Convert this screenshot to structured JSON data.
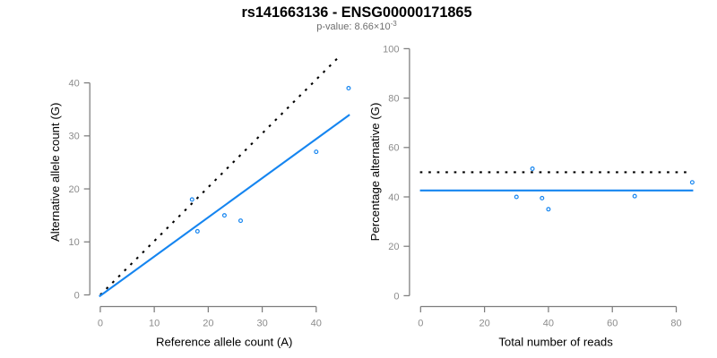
{
  "title": "rs141663136 - ENSG00000171865",
  "subtitle": {
    "label": "p-value:",
    "mantissa": "8.66",
    "times_sign": "×",
    "base": "10",
    "exponent": "-3"
  },
  "colors": {
    "background": "#ffffff",
    "title": "#000000",
    "subtitle": "#6e6e6e",
    "axis_line": "#7d7d7d",
    "tick_label": "#8c8c8c",
    "axis_title": "#000000",
    "blue": "#1585f0",
    "black": "#000000"
  },
  "chart_data": [
    {
      "name": "allele-counts",
      "type": "scatter",
      "xlabel": "Reference allele count (A)",
      "ylabel": "Alternative allele count (G)",
      "xticks": [
        0,
        10,
        20,
        30,
        40
      ],
      "yticks": [
        0,
        10,
        20,
        30,
        40
      ],
      "xlim": [
        -0.3,
        47.8
      ],
      "ylim": [
        -2.2,
        45.3
      ],
      "grid": false,
      "legend": false,
      "points": [
        [
          17,
          18
        ],
        [
          18,
          12
        ],
        [
          23,
          15
        ],
        [
          26,
          14
        ],
        [
          40,
          27
        ],
        [
          46,
          39
        ]
      ],
      "lines": [
        {
          "name": "identity-line",
          "style": "dotted",
          "color": "black",
          "x": [
            0,
            44.3
          ],
          "y": [
            0,
            45.0
          ]
        },
        {
          "name": "fit-line",
          "style": "solid",
          "color": "blue",
          "x": [
            -0.2,
            46.2
          ],
          "y": [
            -0.3,
            34.0
          ]
        }
      ]
    },
    {
      "name": "percentage-alternative",
      "type": "scatter",
      "xlabel": "Total number of reads",
      "ylabel": "Percentage alternative (G)",
      "xticks": [
        0,
        20,
        40,
        60,
        80
      ],
      "yticks": [
        0,
        20,
        40,
        60,
        80,
        100
      ],
      "xlim": [
        -3.5,
        88.5
      ],
      "ylim": [
        -4.4,
        104.4
      ],
      "grid": false,
      "legend": false,
      "points": [
        [
          30,
          40
        ],
        [
          35,
          51.4
        ],
        [
          38,
          39.5
        ],
        [
          40,
          35
        ],
        [
          67,
          40.3
        ],
        [
          85,
          45.9
        ]
      ],
      "lines": [
        {
          "name": "null-line",
          "style": "dotted",
          "color": "black",
          "x": [
            -0.2,
            83.8
          ],
          "y": [
            50,
            50
          ]
        },
        {
          "name": "fit-line",
          "style": "solid",
          "color": "blue",
          "x": [
            -0.2,
            85.3
          ],
          "y": [
            42.6,
            42.6
          ]
        }
      ]
    }
  ]
}
